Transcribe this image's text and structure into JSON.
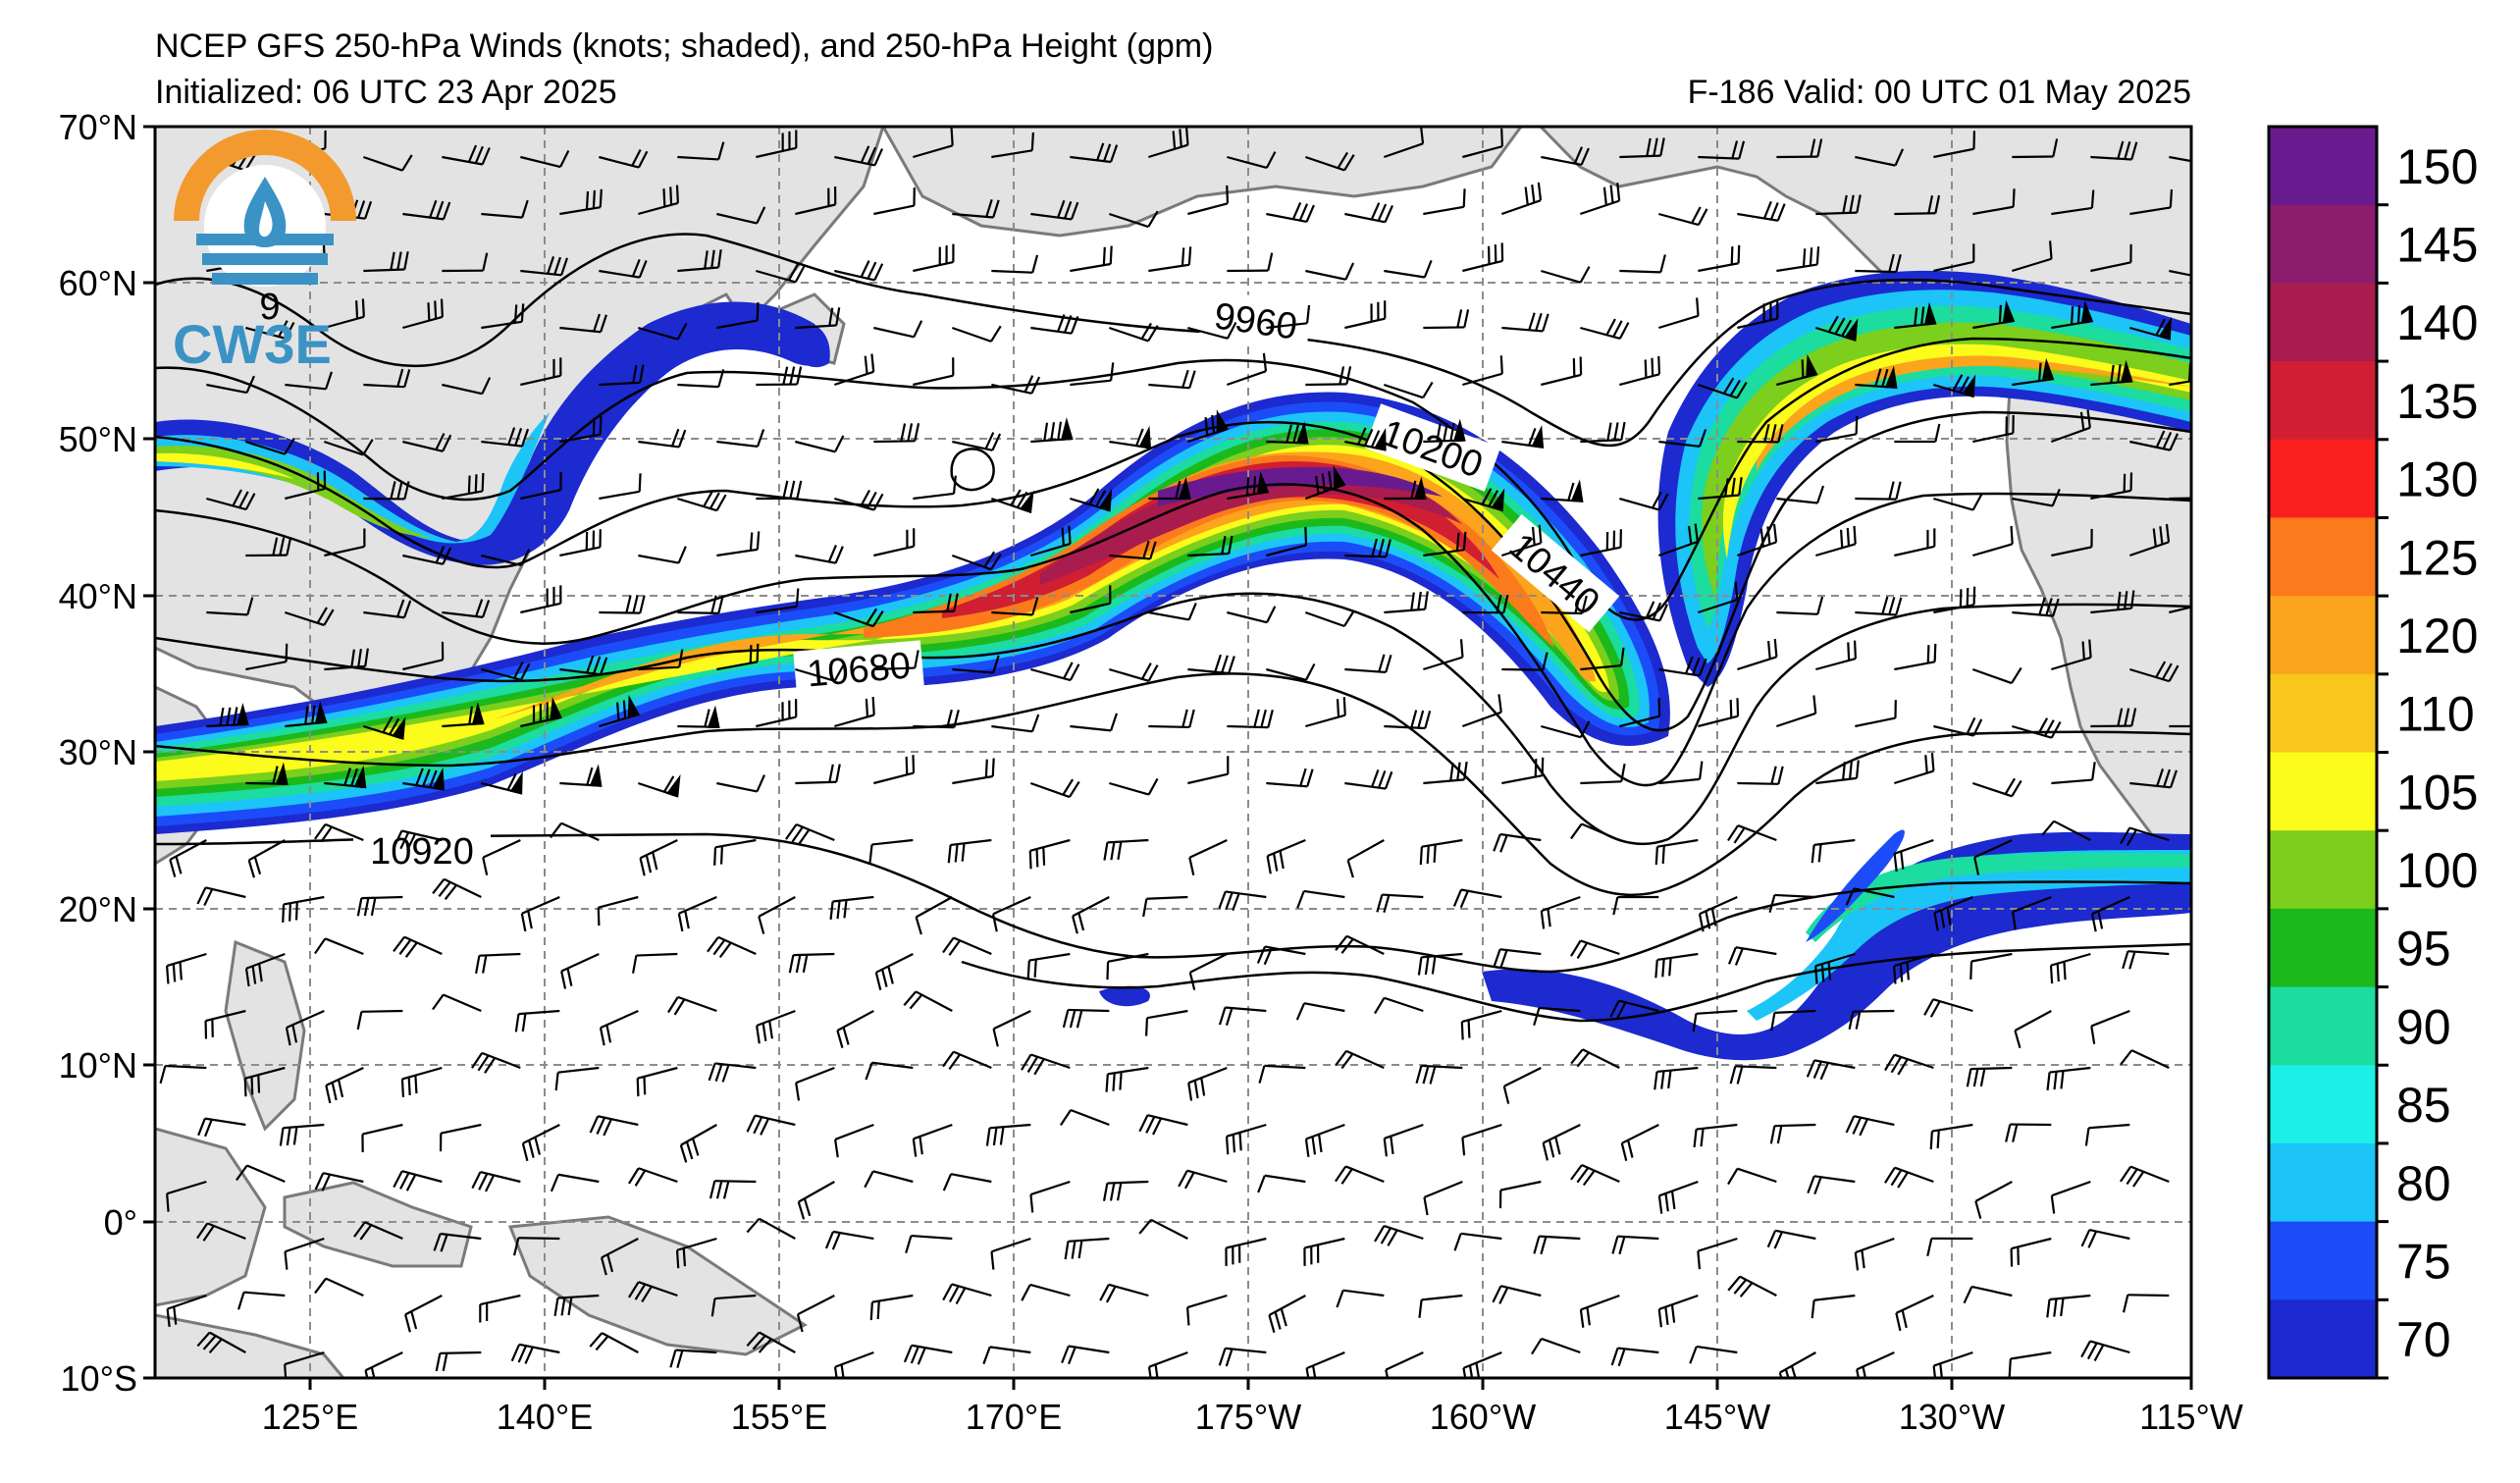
{
  "header": {
    "title": "NCEP GFS 250-hPa Winds (knots; shaded), and 250-hPa Height (gpm)",
    "initialized": "Initialized: 06 UTC 23 Apr 2025",
    "valid": "F-186  Valid: 00 UTC 01 May 2025"
  },
  "logo": {
    "text": "CW3E"
  },
  "map": {
    "lat_labels": [
      "70°N",
      "60°N",
      "50°N",
      "40°N",
      "30°N",
      "20°N",
      "10°N",
      "0°",
      "10°S"
    ],
    "lon_labels": [
      "125°E",
      "140°E",
      "155°E",
      "170°E",
      "175°W",
      "160°W",
      "145°W",
      "130°W",
      "115°W"
    ],
    "contour_labels": [
      "9960",
      "10200",
      "10440",
      "10680",
      "10920"
    ],
    "partial_label": "9",
    "colors": {
      "land": "#e3e3e3",
      "coast": "#7a7a7a",
      "grid": "#8c8c8c"
    }
  },
  "colorbar": {
    "labels": [
      "150",
      "145",
      "140",
      "135",
      "130",
      "125",
      "120",
      "110",
      "105",
      "100",
      "95",
      "90",
      "85",
      "80",
      "75",
      "70"
    ],
    "colors": [
      "#6a1a8f",
      "#8c1c6c",
      "#a81c4e",
      "#d01e32",
      "#fb2020",
      "#fb7a1c",
      "#fba41c",
      "#f8c61c",
      "#fbfb1c",
      "#7ccf1c",
      "#1cb91c",
      "#1cdca0",
      "#1cf0e6",
      "#1cc4f8",
      "#1c4cf8",
      "#1c2ad0"
    ]
  }
}
